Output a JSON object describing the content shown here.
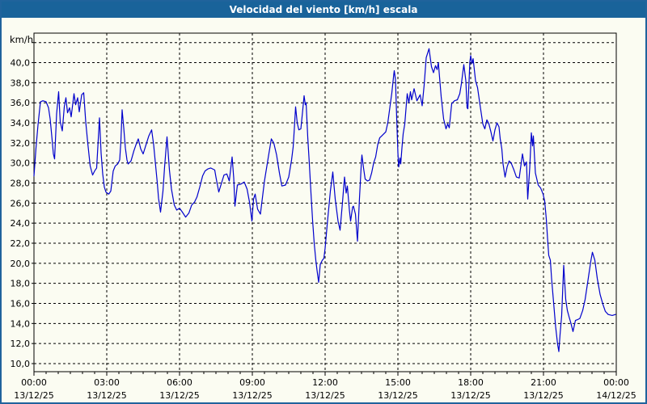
{
  "window": {
    "title": "Velocidad del viento [km/h] escala",
    "titlebar_color": "#19639a",
    "border_color": "#20639c",
    "background_color": "#fbfcf2"
  },
  "chart_data": {
    "type": "line",
    "title": "Velocidad del viento [km/h] escala",
    "ylabel": "km/h",
    "xlabel": "",
    "legend": "none",
    "grid": "dashed horizontal and vertical",
    "line_color": "#0000cc",
    "grid_color": "#000000",
    "ylim": [
      9.2,
      42.9
    ],
    "x_range_minutes": [
      0,
      1440
    ],
    "minor_x_tick_minutes": 30,
    "y_ticks": [
      {
        "v": 10,
        "label": "10,0"
      },
      {
        "v": 12,
        "label": "12,0"
      },
      {
        "v": 14,
        "label": "14,0"
      },
      {
        "v": 16,
        "label": "16,0"
      },
      {
        "v": 18,
        "label": "18,0"
      },
      {
        "v": 20,
        "label": "20,0"
      },
      {
        "v": 22,
        "label": "22,0"
      },
      {
        "v": 24,
        "label": "24,0"
      },
      {
        "v": 26,
        "label": "26,0"
      },
      {
        "v": 28,
        "label": "28,0"
      },
      {
        "v": 30,
        "label": "30,0"
      },
      {
        "v": 32,
        "label": "32,0"
      },
      {
        "v": 34,
        "label": "34,0"
      },
      {
        "v": 36,
        "label": "36,0"
      },
      {
        "v": 38,
        "label": "38,0"
      },
      {
        "v": 40,
        "label": "40,0"
      },
      {
        "v": 42,
        "label": ""
      }
    ],
    "x_ticks": [
      {
        "t": 0,
        "time": "00:00",
        "date": "13/12/25"
      },
      {
        "t": 180,
        "time": "03:00",
        "date": "13/12/25"
      },
      {
        "t": 360,
        "time": "06:00",
        "date": "13/12/25"
      },
      {
        "t": 540,
        "time": "09:00",
        "date": "13/12/25"
      },
      {
        "t": 720,
        "time": "12:00",
        "date": "13/12/25"
      },
      {
        "t": 900,
        "time": "15:00",
        "date": "13/12/25"
      },
      {
        "t": 1080,
        "time": "18:00",
        "date": "13/12/25"
      },
      {
        "t": 1260,
        "time": "21:00",
        "date": "13/12/25"
      },
      {
        "t": 1440,
        "time": "00:00",
        "date": "14/12/25"
      }
    ],
    "series": [
      {
        "name": "Velocidad del viento",
        "unit": "km/h",
        "points": [
          [
            0,
            28.7
          ],
          [
            5,
            31.5
          ],
          [
            10,
            33.8
          ],
          [
            16,
            36.1
          ],
          [
            22,
            36.2
          ],
          [
            30,
            36.1
          ],
          [
            36,
            35.5
          ],
          [
            40,
            34.4
          ],
          [
            44,
            32.7
          ],
          [
            48,
            30.9
          ],
          [
            51,
            30.4
          ],
          [
            56,
            34.9
          ],
          [
            61,
            37.1
          ],
          [
            65,
            34.1
          ],
          [
            70,
            33.2
          ],
          [
            75,
            35.6
          ],
          [
            79,
            36.5
          ],
          [
            83,
            35.0
          ],
          [
            88,
            35.5
          ],
          [
            92,
            34.6
          ],
          [
            99,
            36.9
          ],
          [
            103,
            35.8
          ],
          [
            108,
            36.5
          ],
          [
            112,
            35.1
          ],
          [
            118,
            36.8
          ],
          [
            123,
            37.0
          ],
          [
            128,
            34.1
          ],
          [
            133,
            32.0
          ],
          [
            139,
            29.7
          ],
          [
            145,
            28.8
          ],
          [
            150,
            29.2
          ],
          [
            155,
            29.5
          ],
          [
            162,
            34.5
          ],
          [
            166,
            31.0
          ],
          [
            170,
            28.9
          ],
          [
            174,
            27.6
          ],
          [
            178,
            27.1
          ],
          [
            185,
            26.9
          ],
          [
            190,
            27.2
          ],
          [
            196,
            29.2
          ],
          [
            201,
            29.7
          ],
          [
            207,
            29.9
          ],
          [
            212,
            30.3
          ],
          [
            215,
            32.2
          ],
          [
            218,
            35.3
          ],
          [
            222,
            33.5
          ],
          [
            226,
            31.5
          ],
          [
            230,
            30.3
          ],
          [
            233,
            29.9
          ],
          [
            240,
            30.2
          ],
          [
            247,
            31.2
          ],
          [
            253,
            31.9
          ],
          [
            258,
            32.4
          ],
          [
            264,
            31.4
          ],
          [
            270,
            30.9
          ],
          [
            277,
            31.8
          ],
          [
            284,
            32.7
          ],
          [
            291,
            33.3
          ],
          [
            296,
            31.8
          ],
          [
            300,
            30.1
          ],
          [
            305,
            28.0
          ],
          [
            308,
            26.5
          ],
          [
            313,
            25.1
          ],
          [
            319,
            27.2
          ],
          [
            323,
            29.6
          ],
          [
            329,
            32.6
          ],
          [
            335,
            29.3
          ],
          [
            340,
            27.4
          ],
          [
            347,
            25.8
          ],
          [
            353,
            25.3
          ],
          [
            360,
            25.5
          ],
          [
            367,
            25.1
          ],
          [
            375,
            24.6
          ],
          [
            383,
            25.0
          ],
          [
            390,
            25.8
          ],
          [
            397,
            26.1
          ],
          [
            403,
            26.6
          ],
          [
            410,
            27.6
          ],
          [
            417,
            28.7
          ],
          [
            423,
            29.2
          ],
          [
            430,
            29.4
          ],
          [
            437,
            29.5
          ],
          [
            447,
            29.3
          ],
          [
            450,
            28.6
          ],
          [
            457,
            27.1
          ],
          [
            463,
            27.9
          ],
          [
            470,
            28.8
          ],
          [
            477,
            28.9
          ],
          [
            483,
            28.2
          ],
          [
            490,
            30.6
          ],
          [
            494,
            28.5
          ],
          [
            497,
            25.7
          ],
          [
            503,
            27.8
          ],
          [
            512,
            27.9
          ],
          [
            520,
            28.1
          ],
          [
            527,
            27.4
          ],
          [
            533,
            26.1
          ],
          [
            539,
            24.2
          ],
          [
            543,
            26.4
          ],
          [
            547,
            26.9
          ],
          [
            553,
            25.4
          ],
          [
            560,
            24.9
          ],
          [
            570,
            28.2
          ],
          [
            580,
            30.7
          ],
          [
            587,
            32.4
          ],
          [
            593,
            32.0
          ],
          [
            600,
            30.8
          ],
          [
            607,
            29.0
          ],
          [
            613,
            27.7
          ],
          [
            622,
            27.8
          ],
          [
            630,
            28.6
          ],
          [
            637,
            30.3
          ],
          [
            641,
            31.6
          ],
          [
            644,
            33.5
          ],
          [
            647,
            35.6
          ],
          [
            651,
            34.0
          ],
          [
            655,
            33.3
          ],
          [
            660,
            33.4
          ],
          [
            664,
            35.0
          ],
          [
            668,
            36.7
          ],
          [
            671,
            35.8
          ],
          [
            673,
            36.0
          ],
          [
            677,
            32.6
          ],
          [
            681,
            29.9
          ],
          [
            685,
            27.0
          ],
          [
            689,
            24.3
          ],
          [
            693,
            22.0
          ],
          [
            697,
            20.3
          ],
          [
            700,
            19.3
          ],
          [
            704,
            18.1
          ],
          [
            708,
            19.9
          ],
          [
            713,
            20.3
          ],
          [
            717,
            20.5
          ],
          [
            720,
            21.5
          ],
          [
            725,
            23.8
          ],
          [
            733,
            27.2
          ],
          [
            739,
            29.1
          ],
          [
            745,
            26.4
          ],
          [
            752,
            24.2
          ],
          [
            757,
            23.3
          ],
          [
            763,
            26.1
          ],
          [
            768,
            28.6
          ],
          [
            772,
            27.0
          ],
          [
            775,
            27.7
          ],
          [
            780,
            25.3
          ],
          [
            783,
            24.2
          ],
          [
            788,
            25.6
          ],
          [
            790,
            25.7
          ],
          [
            795,
            24.9
          ],
          [
            800,
            22.2
          ],
          [
            805,
            26.5
          ],
          [
            810,
            30.3
          ],
          [
            811,
            30.8
          ],
          [
            815,
            29.5
          ],
          [
            819,
            28.4
          ],
          [
            825,
            28.2
          ],
          [
            830,
            28.3
          ],
          [
            835,
            29.0
          ],
          [
            840,
            30.0
          ],
          [
            845,
            30.6
          ],
          [
            850,
            31.8
          ],
          [
            855,
            32.5
          ],
          [
            860,
            32.7
          ],
          [
            865,
            32.9
          ],
          [
            870,
            33.1
          ],
          [
            875,
            34.0
          ],
          [
            880,
            35.5
          ],
          [
            885,
            37.0
          ],
          [
            890,
            38.9
          ],
          [
            891,
            39.2
          ],
          [
            894,
            38.3
          ],
          [
            897,
            34.5
          ],
          [
            900,
            31.0
          ],
          [
            902,
            29.6
          ],
          [
            905,
            30.5
          ],
          [
            907,
            29.9
          ],
          [
            910,
            31.5
          ],
          [
            913,
            32.9
          ],
          [
            917,
            33.9
          ],
          [
            920,
            35.4
          ],
          [
            923,
            36.9
          ],
          [
            927,
            36.0
          ],
          [
            931,
            37.1
          ],
          [
            934,
            36.3
          ],
          [
            940,
            37.4
          ],
          [
            947,
            36.2
          ],
          [
            955,
            36.8
          ],
          [
            960,
            35.7
          ],
          [
            965,
            37.8
          ],
          [
            970,
            40.5
          ],
          [
            977,
            41.4
          ],
          [
            983,
            39.6
          ],
          [
            988,
            39.0
          ],
          [
            993,
            39.7
          ],
          [
            997,
            39.3
          ],
          [
            1000,
            40.0
          ],
          [
            1007,
            36.6
          ],
          [
            1013,
            34.4
          ],
          [
            1019,
            33.4
          ],
          [
            1023,
            33.9
          ],
          [
            1027,
            33.5
          ],
          [
            1033,
            35.9
          ],
          [
            1040,
            36.2
          ],
          [
            1047,
            36.3
          ],
          [
            1053,
            36.9
          ],
          [
            1057,
            37.9
          ],
          [
            1063,
            39.8
          ],
          [
            1068,
            38.2
          ],
          [
            1071,
            35.5
          ],
          [
            1073,
            35.4
          ],
          [
            1078,
            40.1
          ],
          [
            1080,
            40.7
          ],
          [
            1083,
            39.9
          ],
          [
            1086,
            40.4
          ],
          [
            1092,
            38.2
          ],
          [
            1097,
            37.5
          ],
          [
            1103,
            35.8
          ],
          [
            1110,
            33.9
          ],
          [
            1115,
            33.4
          ],
          [
            1120,
            34.3
          ],
          [
            1125,
            33.9
          ],
          [
            1130,
            33.1
          ],
          [
            1135,
            32.2
          ],
          [
            1140,
            33.3
          ],
          [
            1145,
            34.0
          ],
          [
            1150,
            33.6
          ],
          [
            1153,
            32.4
          ],
          [
            1157,
            31.4
          ],
          [
            1160,
            29.9
          ],
          [
            1165,
            28.6
          ],
          [
            1170,
            29.6
          ],
          [
            1175,
            30.2
          ],
          [
            1180,
            30.0
          ],
          [
            1187,
            29.3
          ],
          [
            1193,
            28.6
          ],
          [
            1200,
            28.5
          ],
          [
            1208,
            30.9
          ],
          [
            1213,
            29.7
          ],
          [
            1218,
            30.1
          ],
          [
            1221,
            26.4
          ],
          [
            1226,
            29.5
          ],
          [
            1230,
            33.0
          ],
          [
            1233,
            31.7
          ],
          [
            1235,
            32.7
          ],
          [
            1240,
            29.0
          ],
          [
            1247,
            27.8
          ],
          [
            1253,
            27.5
          ],
          [
            1259,
            26.9
          ],
          [
            1263,
            26.2
          ],
          [
            1267,
            24.4
          ],
          [
            1270,
            22.5
          ],
          [
            1273,
            20.8
          ],
          [
            1277,
            20.3
          ],
          [
            1280,
            18.5
          ],
          [
            1285,
            16.1
          ],
          [
            1290,
            13.7
          ],
          [
            1295,
            11.9
          ],
          [
            1298,
            11.2
          ],
          [
            1301,
            12.9
          ],
          [
            1305,
            14.8
          ],
          [
            1310,
            19.8
          ],
          [
            1315,
            16.4
          ],
          [
            1319,
            15.3
          ],
          [
            1323,
            14.7
          ],
          [
            1328,
            14.0
          ],
          [
            1333,
            13.2
          ],
          [
            1339,
            14.3
          ],
          [
            1345,
            14.4
          ],
          [
            1350,
            14.5
          ],
          [
            1357,
            15.3
          ],
          [
            1363,
            16.4
          ],
          [
            1370,
            18.3
          ],
          [
            1377,
            20.2
          ],
          [
            1381,
            21.1
          ],
          [
            1387,
            20.3
          ],
          [
            1393,
            18.5
          ],
          [
            1400,
            16.9
          ],
          [
            1407,
            15.9
          ],
          [
            1413,
            15.2
          ],
          [
            1420,
            14.9
          ],
          [
            1430,
            14.8
          ],
          [
            1438,
            14.9
          ]
        ]
      }
    ]
  }
}
